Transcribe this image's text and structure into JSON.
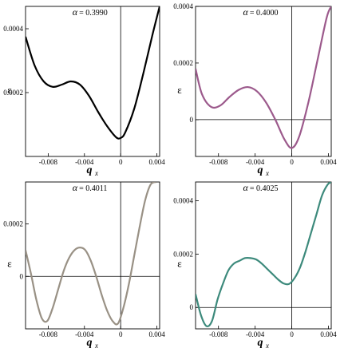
{
  "chart_data": [
    {
      "type": "line",
      "annotation_symbol": "α",
      "annotation_value": "= 0.3990",
      "xlabel": "q",
      "xlabel_sub": "x",
      "ylabel": "ε",
      "color": "#000000",
      "xlim": [
        -0.0105,
        0.0043
      ],
      "ylim": [
        0.0,
        0.00047
      ],
      "xticks": [
        -0.008,
        -0.004,
        0,
        0.004
      ],
      "xtick_labels": [
        "-0.008",
        "-0.004",
        "0",
        "0.004"
      ],
      "yticks": [
        0.0002,
        0.0004
      ],
      "ytick_labels": [
        "0.0002",
        "0.0004"
      ],
      "zero_vertical": true,
      "zero_horizontal": false,
      "series": [
        {
          "x": [
            -0.0105,
            -0.0095,
            -0.0085,
            -0.0075,
            -0.0065,
            -0.0055,
            -0.0045,
            -0.0035,
            -0.0025,
            -0.0015,
            -0.0005,
            0.0,
            0.0005,
            0.0015,
            0.0025,
            0.0035,
            0.0043
          ],
          "y": [
            0.000375,
            0.000285,
            0.000235,
            0.000218,
            0.000225,
            0.000235,
            0.000225,
            0.00019,
            0.00014,
            9.5e-05,
            6e-05,
            5.8e-05,
            7.5e-05,
            0.00015,
            0.00026,
            0.00038,
            0.00047
          ]
        }
      ]
    },
    {
      "type": "line",
      "annotation_symbol": "α",
      "annotation_value": "= 0.4000",
      "xlabel": "q",
      "xlabel_sub": "x",
      "ylabel": "ε",
      "color": "#9c5a8c",
      "xlim": [
        -0.0105,
        0.0043
      ],
      "ylim": [
        -0.00013,
        0.0004
      ],
      "xticks": [
        -0.008,
        -0.004,
        0,
        0.004
      ],
      "xtick_labels": [
        "-0.008",
        "-0.004",
        "0",
        "0.004"
      ],
      "yticks": [
        0,
        0.0002,
        0.0004
      ],
      "ytick_labels": [
        "0",
        "0.0002",
        "0.0004"
      ],
      "zero_vertical": true,
      "zero_horizontal": true,
      "series": [
        {
          "x": [
            -0.0105,
            -0.0098,
            -0.0088,
            -0.0078,
            -0.0068,
            -0.0058,
            -0.0048,
            -0.0038,
            -0.0028,
            -0.0018,
            -0.0008,
            0.0,
            0.0008,
            0.0018,
            0.0028,
            0.0038,
            0.0043
          ],
          "y": [
            0.00018,
            9e-05,
            4.5e-05,
            5e-05,
            8e-05,
            0.000105,
            0.000115,
            0.0001,
            6e-05,
            0.0,
            -7e-05,
            -0.0001,
            -6e-05,
            6e-05,
            0.00021,
            0.00036,
            0.0004
          ]
        }
      ]
    },
    {
      "type": "line",
      "annotation_symbol": "α",
      "annotation_value": "= 0.4011",
      "xlabel": "q",
      "xlabel_sub": "x",
      "ylabel": "ε",
      "color": "#999185",
      "xlim": [
        -0.0105,
        0.0043
      ],
      "ylim": [
        -0.0002,
        0.00036
      ],
      "xticks": [
        -0.008,
        -0.004,
        0,
        0.004
      ],
      "xtick_labels": [
        "-0.008",
        "-0.004",
        "0",
        "0.004"
      ],
      "yticks": [
        0,
        0.0002
      ],
      "ytick_labels": [
        "0",
        "0.0002"
      ],
      "zero_vertical": true,
      "zero_horizontal": true,
      "series": [
        {
          "x": [
            -0.0105,
            -0.0099,
            -0.0093,
            -0.0087,
            -0.0081,
            -0.0075,
            -0.0069,
            -0.0063,
            -0.0057,
            -0.0051,
            -0.0045,
            -0.0039,
            -0.0033,
            -0.0027,
            -0.0021,
            -0.0015,
            -0.0009,
            -0.0003,
            0.0003,
            0.0009,
            0.0015,
            0.0021,
            0.0027,
            0.0033,
            0.0039
          ],
          "y": [
            0.0001,
            1e-05,
            -9e-05,
            -0.00016,
            -0.00017,
            -0.00012,
            -5e-05,
            2e-05,
            7e-05,
            0.0001,
            0.00011,
            0.0001,
            6e-05,
            0.0,
            -7e-05,
            -0.00013,
            -0.00017,
            -0.00018,
            -0.00012,
            -3e-05,
            8e-05,
            0.00019,
            0.00029,
            0.00035,
            0.00036
          ]
        }
      ]
    },
    {
      "type": "line",
      "annotation_symbol": "α",
      "annotation_value": "= 0.4025",
      "xlabel": "q",
      "xlabel_sub": "x",
      "ylabel": "ε",
      "color": "#3d8a7c",
      "xlim": [
        -0.0105,
        0.0043
      ],
      "ylim": [
        -8e-05,
        0.00047
      ],
      "xticks": [
        -0.008,
        -0.004,
        0,
        0.004
      ],
      "xtick_labels": [
        "-0.008",
        "-0.004",
        "0",
        "0.004"
      ],
      "yticks": [
        0,
        0.0002,
        0.0004
      ],
      "ytick_labels": [
        "0",
        "0.0002",
        "0.0004"
      ],
      "zero_vertical": true,
      "zero_horizontal": true,
      "series": [
        {
          "x": [
            -0.0105,
            -0.0099,
            -0.0093,
            -0.0087,
            -0.0081,
            -0.0075,
            -0.0069,
            -0.0063,
            -0.0057,
            -0.0051,
            -0.0045,
            -0.0039,
            -0.0033,
            -0.0027,
            -0.0021,
            -0.0015,
            -0.0009,
            -0.0003,
            0.0003,
            0.0009,
            0.0015,
            0.0021,
            0.0027,
            0.0033,
            0.0039,
            0.0043
          ],
          "y": [
            5e-05,
            -3e-05,
            -7e-05,
            -5e-05,
            3e-05,
            9e-05,
            0.00014,
            0.000165,
            0.000175,
            0.000185,
            0.000185,
            0.00018,
            0.000165,
            0.000145,
            0.000125,
            0.000105,
            9e-05,
            8.8e-05,
            0.00011,
            0.00015,
            0.00021,
            0.00028,
            0.00035,
            0.00042,
            0.00046,
            0.00047
          ]
        }
      ]
    }
  ]
}
